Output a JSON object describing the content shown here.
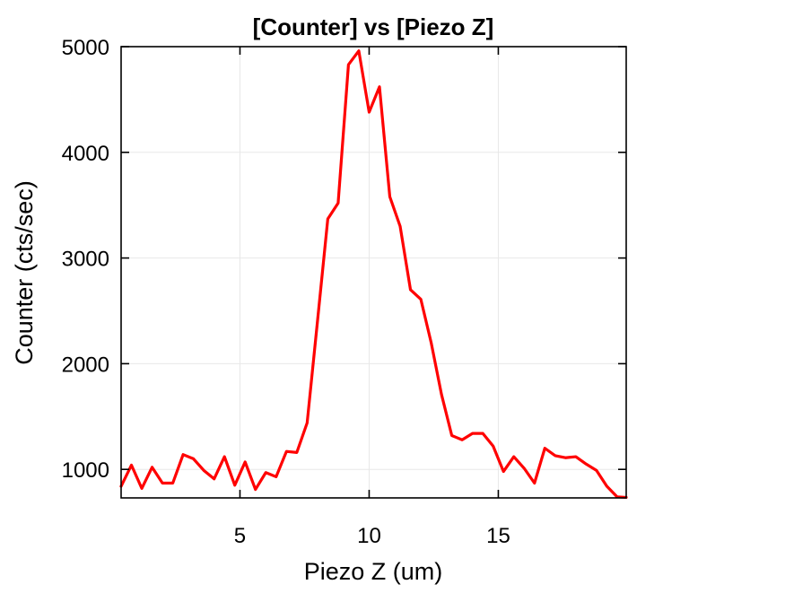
{
  "chart_data": {
    "type": "line",
    "title": "[Counter] vs [Piezo Z]",
    "xlabel": "Piezo Z (um)",
    "ylabel": "Counter (cts/sec)",
    "xlim": [
      0.4,
      19.95
    ],
    "ylim": [
      730,
      5000
    ],
    "x_ticks": [
      5,
      10,
      15
    ],
    "y_ticks": [
      1000,
      2000,
      3000,
      4000,
      5000
    ],
    "x_tick_labels": [
      "5",
      "10",
      "15"
    ],
    "y_tick_labels": [
      "1000",
      "2000",
      "3000",
      "4000",
      "5000"
    ],
    "grid": true,
    "colors": {
      "series": "#ff0000",
      "axes": "#000000",
      "grid": "#e8e8e8"
    },
    "series": [
      {
        "x": [
          0.4,
          0.8,
          1.2,
          1.6,
          2.0,
          2.4,
          2.8,
          3.2,
          3.6,
          4.0,
          4.4,
          4.8,
          5.2,
          5.6,
          6.0,
          6.4,
          6.8,
          7.2,
          7.6,
          8.0,
          8.4,
          8.8,
          9.2,
          9.6,
          10.0,
          10.4,
          10.8,
          11.2,
          11.6,
          12.0,
          12.4,
          12.8,
          13.2,
          13.6,
          14.0,
          14.4,
          14.8,
          15.2,
          15.6,
          16.0,
          16.4,
          16.8,
          17.2,
          17.6,
          18.0,
          18.4,
          18.8,
          19.2,
          19.6,
          19.95
        ],
        "values": [
          840,
          1040,
          820,
          1020,
          870,
          870,
          1140,
          1100,
          990,
          910,
          1120,
          850,
          1070,
          810,
          970,
          930,
          1170,
          1160,
          1440,
          2400,
          3370,
          3520,
          4830,
          4960,
          4380,
          4620,
          3580,
          3300,
          2700,
          2610,
          2200,
          1710,
          1320,
          1280,
          1340,
          1340,
          1220,
          980,
          1120,
          1010,
          870,
          1200,
          1130,
          1110,
          1120,
          1050,
          990,
          840,
          740,
          735
        ]
      }
    ]
  }
}
